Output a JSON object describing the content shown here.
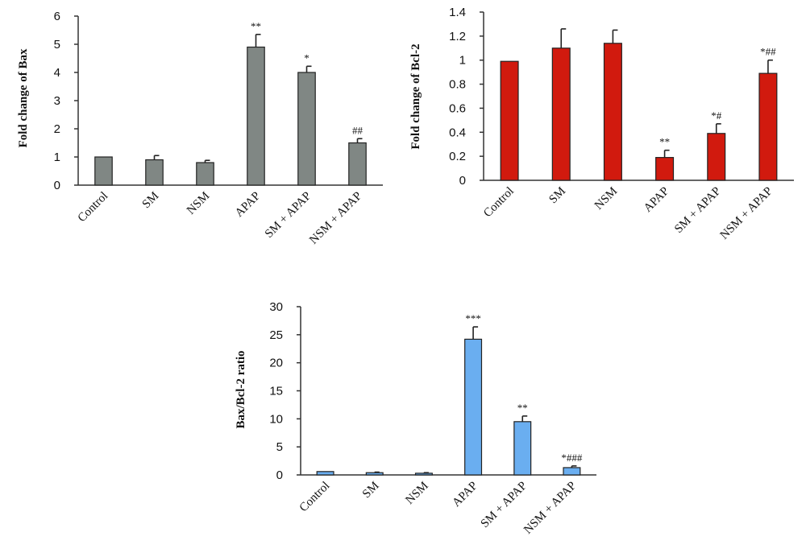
{
  "chart_data": [
    {
      "type": "bar",
      "ylabel": "Fold change of Bax",
      "categories": [
        "Control",
        "SM",
        "NSM",
        "APAP",
        "SM + APAP",
        "NSM + APAP"
      ],
      "values": [
        1.0,
        0.9,
        0.8,
        4.9,
        4.0,
        1.5
      ],
      "errors": [
        0.0,
        0.15,
        0.08,
        0.45,
        0.22,
        0.15
      ],
      "annotations": [
        "",
        "",
        "",
        "**",
        "*",
        "##"
      ],
      "ylim": [
        0,
        6
      ],
      "yticks": [
        "0",
        "1",
        "2",
        "3",
        "4",
        "5",
        "6"
      ],
      "color": "#808784",
      "grid": false
    },
    {
      "type": "bar",
      "ylabel": "Fold change of Bcl-2",
      "categories": [
        "Control",
        "SM",
        "NSM",
        "APAP",
        "SM + APAP",
        "NSM + APAP"
      ],
      "values": [
        0.99,
        1.1,
        1.14,
        0.19,
        0.39,
        0.89
      ],
      "errors": [
        0.0,
        0.16,
        0.11,
        0.06,
        0.08,
        0.11
      ],
      "annotations": [
        "",
        "",
        "",
        "**",
        "*#",
        "*##"
      ],
      "ylim": [
        0,
        1.4
      ],
      "yticks": [
        "0",
        "0.2",
        "0.4",
        "0.6",
        "0.8",
        "1",
        "1.2",
        "1.4"
      ],
      "color": "#d11a0e",
      "grid": false
    },
    {
      "type": "bar",
      "ylabel": "Bax/Bcl-2 ratio",
      "categories": [
        "Control",
        "SM",
        "NSM",
        "APAP",
        "SM + APAP",
        "NSM + APAP"
      ],
      "values": [
        0.6,
        0.4,
        0.3,
        24.2,
        9.5,
        1.3
      ],
      "errors": [
        0.0,
        0.1,
        0.1,
        2.2,
        1.0,
        0.3
      ],
      "annotations": [
        "",
        "",
        "",
        "***",
        "**",
        "*###"
      ],
      "ylim": [
        0,
        30
      ],
      "yticks": [
        "0",
        "5",
        "10",
        "15",
        "20",
        "25",
        "30"
      ],
      "color": "#6aaef0",
      "grid": false
    }
  ]
}
